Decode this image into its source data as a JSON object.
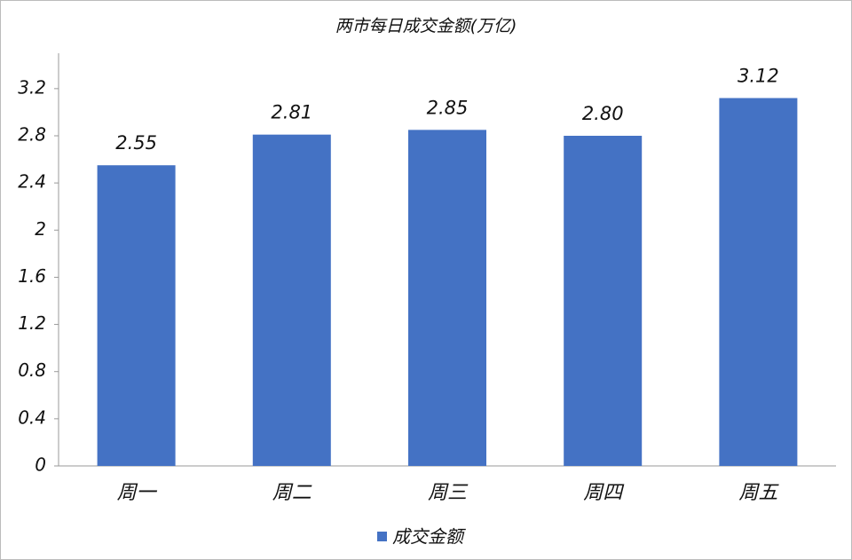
{
  "chart_data": {
    "type": "bar",
    "title": "两市每日成交金额(万亿)",
    "categories": [
      "周一",
      "周二",
      "周三",
      "周四",
      "周五"
    ],
    "series": [
      {
        "name": "成交金额",
        "color": "#4472c4",
        "values": [
          2.55,
          2.81,
          2.85,
          2.8,
          3.12
        ],
        "value_labels": [
          "2.55",
          "2.81",
          "2.85",
          "2.80",
          "3.12"
        ]
      }
    ],
    "ylim": [
      0,
      3.5
    ],
    "yticks": [
      0,
      0.4,
      0.8,
      1.2,
      1.6,
      2,
      2.4,
      2.8,
      3.2
    ],
    "grid": false,
    "legend": "bottom"
  }
}
